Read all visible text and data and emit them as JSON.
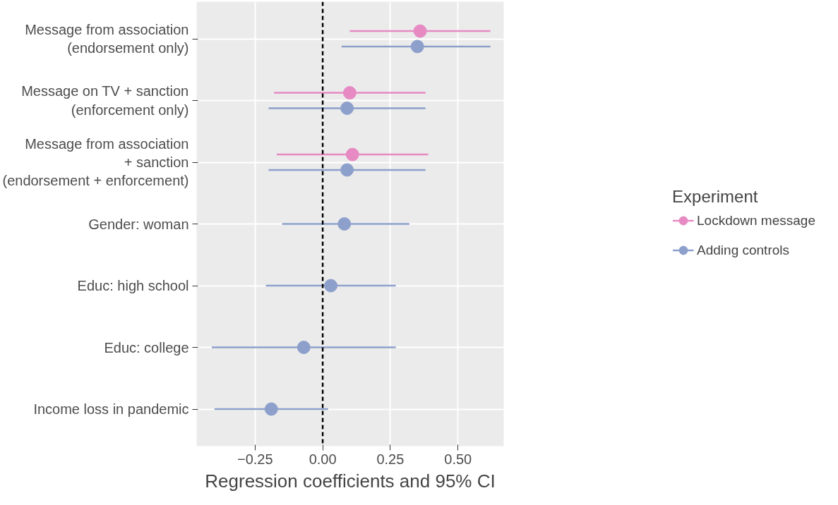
{
  "chart_data": {
    "type": "scatter",
    "orientation": "horizontal",
    "xlabel": "Regression coefficients and 95% CI",
    "legend_title": "Experiment",
    "categories": [
      "Message from association\n(endorsement only)",
      "Message on TV + sanction\n(enforcement only)",
      "Message from association\n+ sanction\n(endorsement + enforcement)",
      "Gender: woman",
      "Educ: high school",
      "Educ: college",
      "Income loss in pandemic"
    ],
    "series": [
      {
        "name": "Lockdown message",
        "color": "#e78ac3",
        "values": [
          0.36,
          0.1,
          0.11,
          null,
          null,
          null,
          null
        ],
        "errors": [
          [
            0.1,
            0.62
          ],
          [
            -0.18,
            0.38
          ],
          [
            -0.17,
            0.39
          ],
          null,
          null,
          null,
          null
        ]
      },
      {
        "name": "Adding controls",
        "color": "#8da0cb",
        "values": [
          0.35,
          0.09,
          0.09,
          0.08,
          0.03,
          -0.07,
          -0.19
        ],
        "errors": [
          [
            0.07,
            0.62
          ],
          [
            -0.2,
            0.38
          ],
          [
            -0.2,
            0.38
          ],
          [
            -0.15,
            0.32
          ],
          [
            -0.21,
            0.27
          ],
          [
            -0.41,
            0.27
          ],
          [
            -0.4,
            0.02
          ]
        ]
      }
    ],
    "xlim": [
      -0.466,
      0.669
    ],
    "xticks": [
      {
        "value": -0.25,
        "label": "−0.25"
      },
      {
        "value": 0,
        "label": "0.00"
      },
      {
        "value": 0.25,
        "label": "0.25"
      },
      {
        "value": 0.5,
        "label": "0.50"
      }
    ],
    "ref_lines": [
      {
        "axis": "x",
        "value": 0,
        "color": "#000000",
        "line_style": "dashed"
      }
    ],
    "grid": true,
    "legend": "right",
    "marker": "circle"
  }
}
